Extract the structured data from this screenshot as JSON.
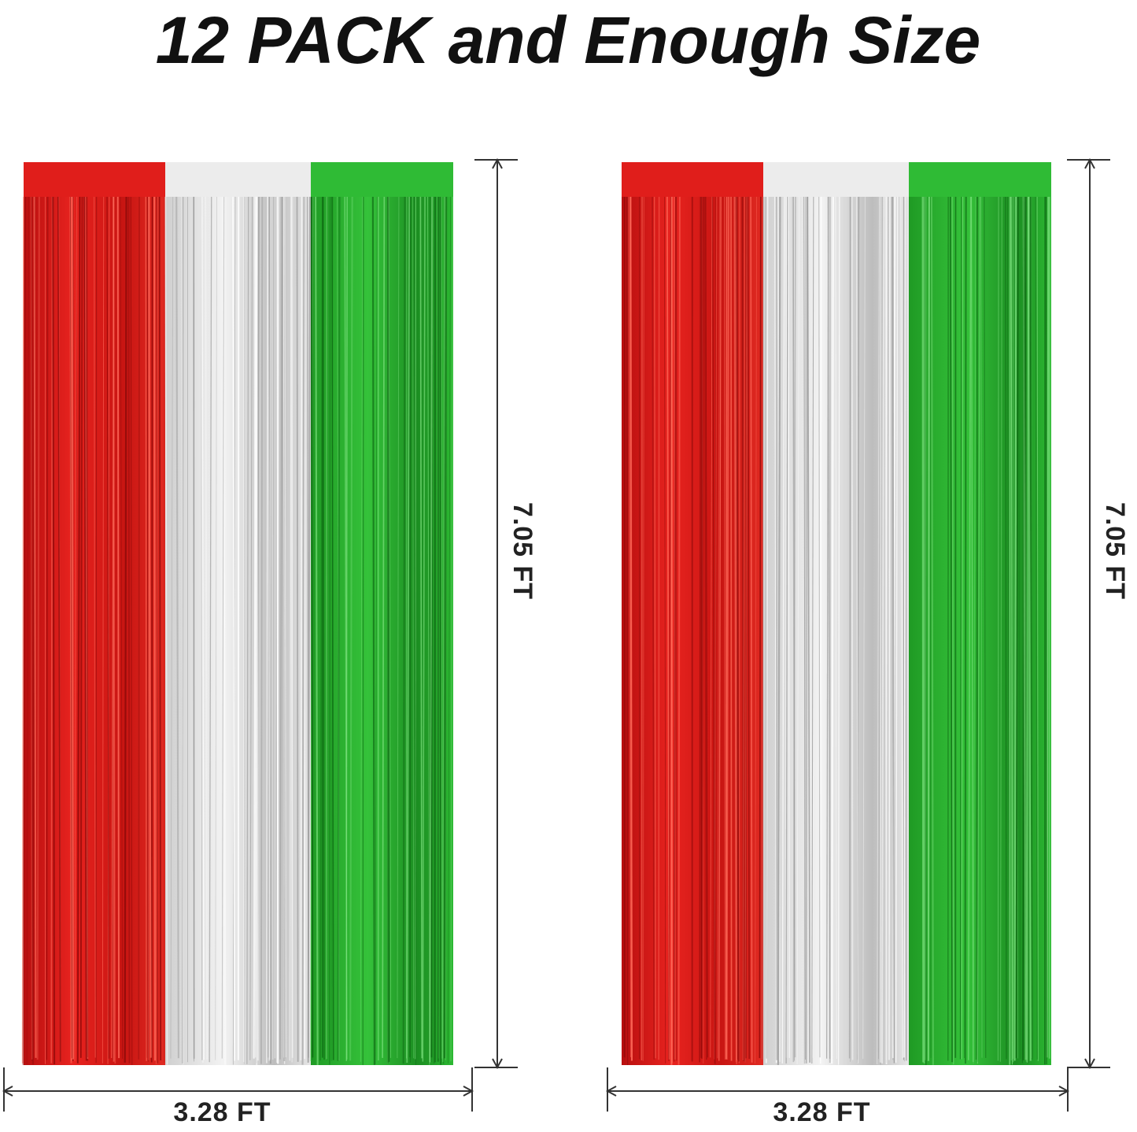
{
  "header": {
    "title": "12 PACK and Enough Size"
  },
  "panels": [
    {
      "height_label": "7.05 FT",
      "width_label": "3.28 FT"
    },
    {
      "height_label": "7.05 FT",
      "width_label": "3.28 FT"
    }
  ]
}
